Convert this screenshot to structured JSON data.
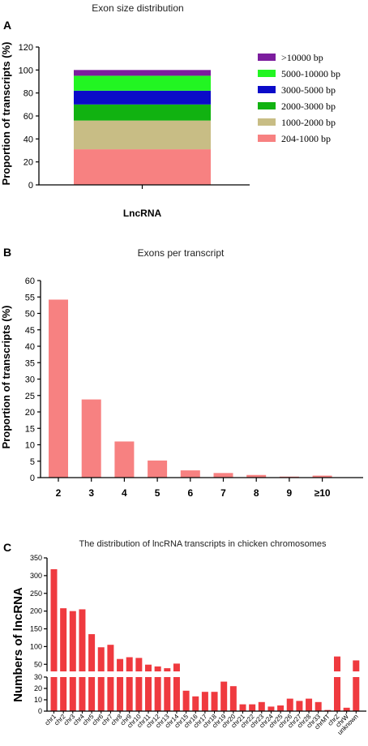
{
  "chart_data": [
    {
      "panel": "A",
      "type": "bar",
      "stacked": true,
      "title": "Exon size distribution",
      "ylabel": "Proportion of transcripts (%)",
      "xlabel": "",
      "categories": [
        "LncRNA"
      ],
      "ylim": [
        0,
        120
      ],
      "yticks": [
        0,
        20,
        40,
        60,
        80,
        100,
        120
      ],
      "legend_position": "right",
      "series": [
        {
          "name": "204-1000 bp",
          "values": [
            31
          ],
          "color": "#f78181"
        },
        {
          "name": "1000-2000 bp",
          "values": [
            25
          ],
          "color": "#c8bd85"
        },
        {
          "name": "2000-3000 bp",
          "values": [
            14
          ],
          "color": "#11b211"
        },
        {
          "name": "3000-5000 bp",
          "values": [
            12
          ],
          "color": "#0b0bc9"
        },
        {
          "name": "5000-10000 bp",
          "values": [
            13
          ],
          "color": "#22f522"
        },
        {
          "name": ">10000 bp",
          "values": [
            5
          ],
          "color": "#7c1d9e"
        }
      ]
    },
    {
      "panel": "B",
      "type": "bar",
      "title": "Exons per transcript",
      "ylabel": "Proportion of transcripts (%)",
      "xlabel": "",
      "categories": [
        "2",
        "3",
        "4",
        "5",
        "6",
        "7",
        "8",
        "9",
        "≥10"
      ],
      "values": [
        54.2,
        23.8,
        11,
        5.2,
        2.2,
        1.4,
        0.8,
        0.3,
        0.6
      ],
      "ylim": [
        0,
        60
      ],
      "yticks": [
        0,
        5,
        10,
        15,
        20,
        25,
        30,
        35,
        40,
        45,
        50,
        55,
        60
      ],
      "color": "#f78181"
    },
    {
      "panel": "C",
      "type": "bar",
      "broken_axis": true,
      "title": "The distribution of lncRNA transcripts in chicken chromosomes",
      "ylabel": "Numbers of lncRNA",
      "xlabel": "",
      "categories": [
        "chr1",
        "chr2",
        "chr3",
        "chr4",
        "chr5",
        "chr6",
        "chr7",
        "chr8",
        "chr9",
        "chr10",
        "chr11",
        "chr12",
        "chr13",
        "chr14",
        "chr15",
        "chr16",
        "chr17",
        "chr18",
        "chr19",
        "chr20",
        "chr21",
        "chr22",
        "chr23",
        "chr24",
        "chr25",
        "chr26",
        "chr27",
        "chr28",
        "chr33",
        "chrMT",
        "chrZ",
        "chrW",
        "unknown"
      ],
      "values": [
        318,
        208,
        200,
        205,
        135,
        98,
        105,
        65,
        70,
        68,
        49,
        44,
        39,
        52,
        18,
        13,
        17,
        17,
        26,
        22,
        6,
        6,
        8,
        4,
        5,
        11,
        9,
        11,
        8,
        1,
        72,
        3,
        61
      ],
      "upper_range": [
        30,
        350
      ],
      "upper_ticks": [
        50,
        100,
        150,
        200,
        250,
        300,
        350
      ],
      "lower_range": [
        0,
        30
      ],
      "lower_ticks": [
        0,
        10,
        20,
        30
      ],
      "color": "#ef3a3f"
    }
  ]
}
